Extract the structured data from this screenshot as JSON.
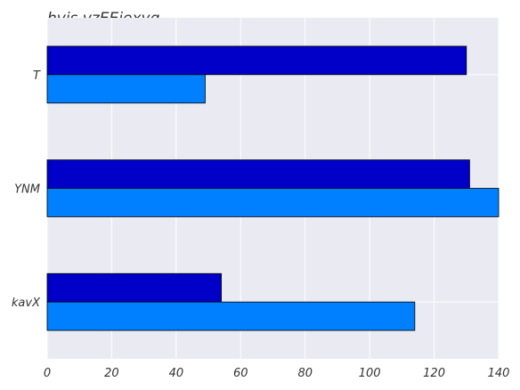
{
  "chart_data": {
    "type": "bar",
    "orientation": "horizontal",
    "title": "hvis vzEEjexyq",
    "xlabel": "",
    "ylabel": "",
    "categories": [
      "T",
      "YNM",
      "kavX"
    ],
    "series": [
      {
        "values": [
          130,
          131,
          54
        ],
        "color": "#0000c8"
      },
      {
        "values": [
          49,
          140,
          114
        ],
        "color": "#0080ff"
      }
    ],
    "xlim": [
      0,
      140
    ],
    "xticks": [
      0,
      20,
      40,
      60,
      80,
      100,
      120,
      140
    ],
    "grid": true,
    "legend": "none",
    "colors": {
      "plot_background": "#eaeaf2",
      "grid": "#ffffff",
      "bar_edge": "#000000"
    }
  }
}
